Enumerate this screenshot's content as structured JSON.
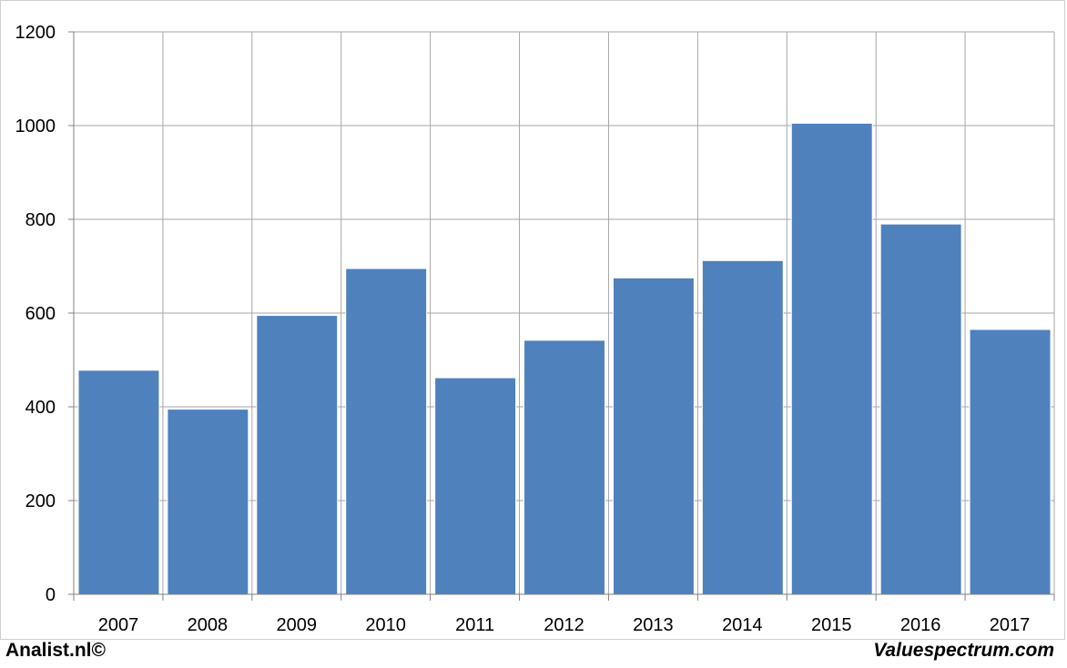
{
  "chart_data": {
    "type": "bar",
    "categories": [
      "2007",
      "2008",
      "2009",
      "2010",
      "2011",
      "2012",
      "2013",
      "2014",
      "2015",
      "2016",
      "2017"
    ],
    "values": [
      478,
      395,
      595,
      695,
      462,
      542,
      675,
      712,
      1005,
      790,
      565
    ],
    "title": "",
    "xlabel": "",
    "ylabel": "",
    "ylim": [
      0,
      1200
    ],
    "yticks": [
      "0",
      "200",
      "400",
      "600",
      "800",
      "1000",
      "1200"
    ],
    "grid": true,
    "legend": "none",
    "bar_color": "#4f81bd",
    "grid_color": "#a6a6a6"
  },
  "footer": {
    "left": "Analist.nl©",
    "right": "Valuespectrum.com"
  }
}
